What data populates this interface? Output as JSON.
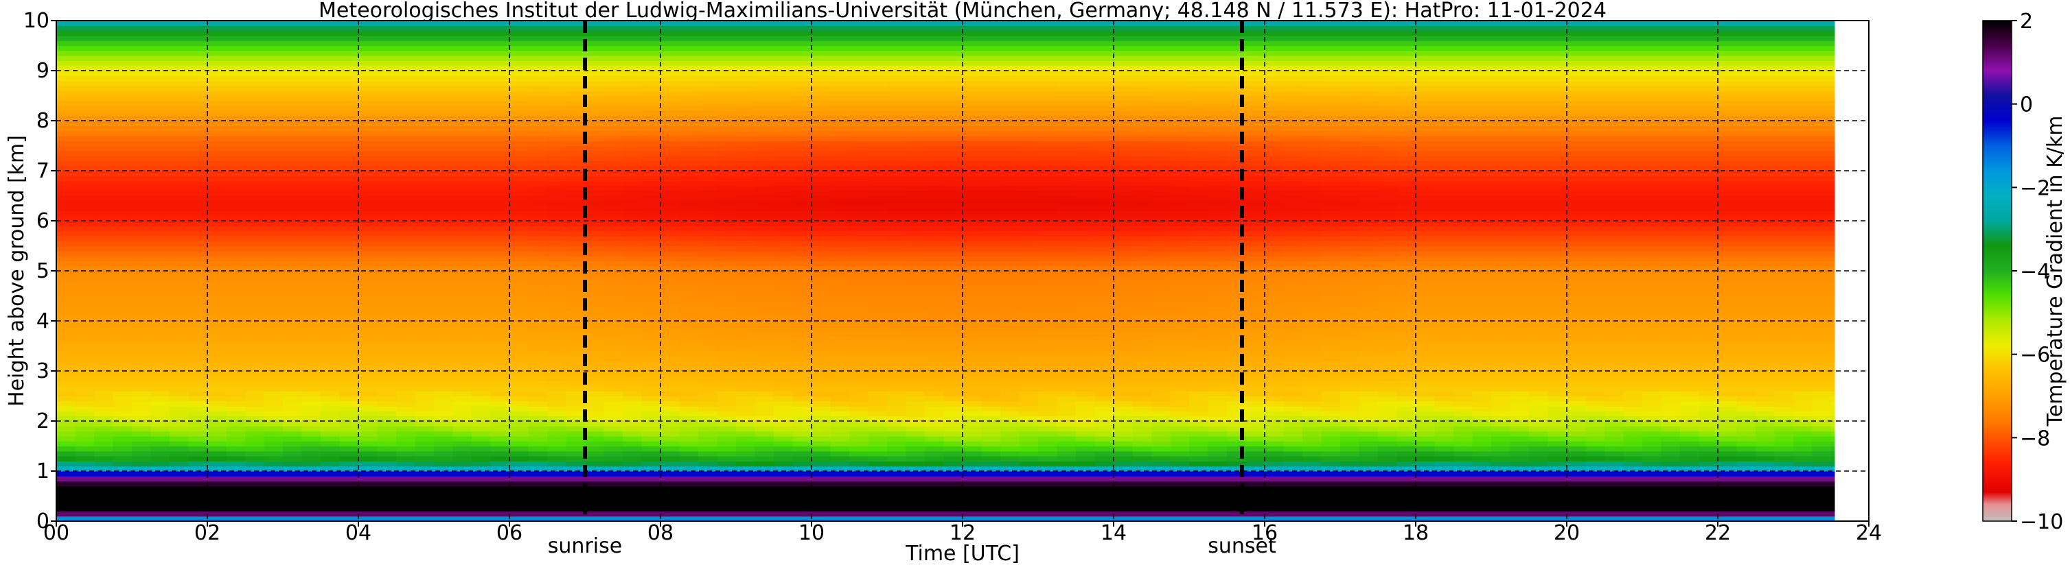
{
  "chart_data": {
    "type": "heatmap",
    "title": "Meteorologisches Institut der Ludwig-Maximilians-Universität (München, Germany; 48.148 N / 11.573 E):    HatPro: 11-01-2024",
    "xlabel": "Time [UTC]",
    "ylabel": "Height above ground [km]",
    "xlim": [
      0,
      24
    ],
    "ylim": [
      0,
      10
    ],
    "x_ticks": [
      0,
      2,
      4,
      6,
      8,
      10,
      12,
      14,
      16,
      18,
      20,
      22,
      24
    ],
    "x_tick_labels": [
      "00",
      "02",
      "04",
      "06",
      "08",
      "10",
      "12",
      "14",
      "16",
      "18",
      "20",
      "22",
      "24"
    ],
    "y_ticks": [
      0,
      1,
      2,
      3,
      4,
      5,
      6,
      7,
      8,
      9,
      10
    ],
    "y_tick_labels": [
      "0",
      "1",
      "2",
      "3",
      "4",
      "5",
      "6",
      "7",
      "8",
      "9",
      "10"
    ],
    "grid": true,
    "events": [
      {
        "label": "sunrise",
        "x": 7.0
      },
      {
        "label": "sunset",
        "x": 15.7
      }
    ],
    "data_end_x": 23.55,
    "colorbar": {
      "label": "Temperature Gradient in K/km",
      "range": [
        -10,
        2
      ],
      "ticks": [
        2,
        0,
        -2,
        -4,
        -6,
        -8,
        -10
      ],
      "tick_labels": [
        "2",
        "0",
        "−2",
        "−4",
        "−6",
        "−8",
        "−10"
      ],
      "stops": [
        {
          "value": -10.0,
          "color": "#c0c0c0"
        },
        {
          "value": -9.6,
          "color": "#e89090"
        },
        {
          "value": -9.3,
          "color": "#e00000"
        },
        {
          "value": -8.6,
          "color": "#ff2000"
        },
        {
          "value": -7.6,
          "color": "#ff7a00"
        },
        {
          "value": -7.0,
          "color": "#ffa000"
        },
        {
          "value": -6.4,
          "color": "#ffc000"
        },
        {
          "value": -5.8,
          "color": "#f0ec00"
        },
        {
          "value": -5.2,
          "color": "#b0ea00"
        },
        {
          "value": -4.6,
          "color": "#50e000"
        },
        {
          "value": -4.0,
          "color": "#20b020"
        },
        {
          "value": -3.4,
          "color": "#109810"
        },
        {
          "value": -2.8,
          "color": "#00a8a0"
        },
        {
          "value": -2.2,
          "color": "#00b0c0"
        },
        {
          "value": -1.6,
          "color": "#0098e0"
        },
        {
          "value": -1.0,
          "color": "#0060e0"
        },
        {
          "value": -0.4,
          "color": "#0000d0"
        },
        {
          "value": 0.2,
          "color": "#1010a0"
        },
        {
          "value": 0.8,
          "color": "#9010b0"
        },
        {
          "value": 1.4,
          "color": "#4a004a"
        },
        {
          "value": 2.0,
          "color": "#000000"
        }
      ]
    },
    "height_profile": {
      "heights_km": [
        0.0,
        0.05,
        0.1,
        0.15,
        0.2,
        0.3,
        0.5,
        0.7,
        0.85,
        0.95,
        1.0,
        1.1,
        1.25,
        1.5,
        1.8,
        2.1,
        2.5,
        3.0,
        3.5,
        4.0,
        5.0,
        6.0,
        6.3,
        6.6,
        7.0,
        7.6,
        8.0,
        8.5,
        9.0,
        9.3,
        9.6,
        9.8,
        10.0
      ],
      "gradient_k_per_km": [
        -3.0,
        -1.5,
        0.0,
        1.2,
        2.0,
        2.0,
        2.0,
        2.0,
        1.0,
        -0.4,
        -1.6,
        -2.8,
        -3.6,
        -4.4,
        -5.0,
        -5.6,
        -6.1,
        -6.5,
        -6.8,
        -7.0,
        -7.3,
        -8.6,
        -8.8,
        -8.7,
        -8.3,
        -7.8,
        -7.2,
        -6.5,
        -5.8,
        -5.0,
        -4.2,
        -3.4,
        -2.4
      ]
    }
  }
}
